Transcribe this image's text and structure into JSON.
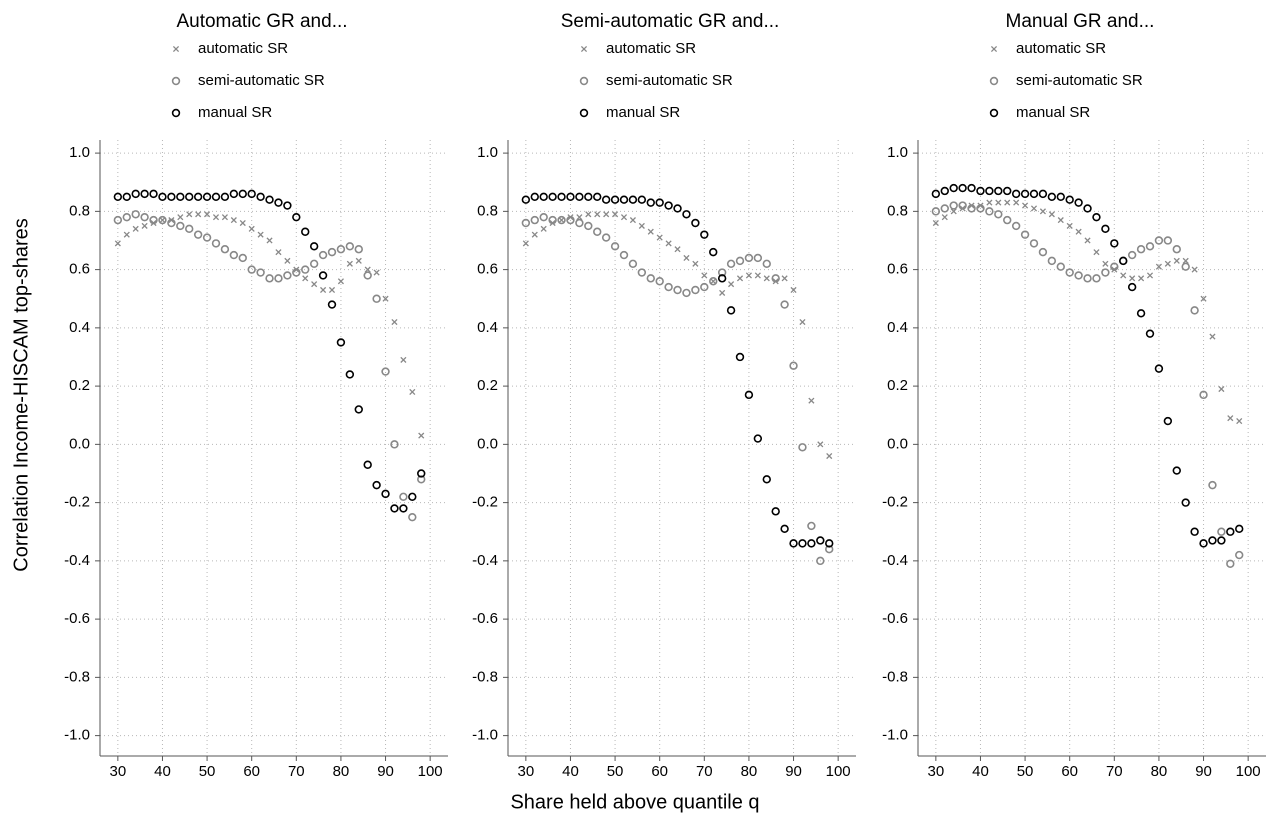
{
  "x_label": "Share held above quantile q",
  "y_label": "Correlation Income-HISCAM top-shares",
  "chart_data": [
    {
      "type": "scatter",
      "title": "Automatic GR and...",
      "x": [
        30,
        32,
        34,
        36,
        38,
        40,
        42,
        44,
        46,
        48,
        50,
        52,
        54,
        56,
        58,
        60,
        62,
        64,
        66,
        68,
        70,
        72,
        74,
        76,
        78,
        80,
        82,
        84,
        86,
        88,
        90,
        92,
        94,
        96,
        98
      ],
      "series": [
        {
          "name": "automatic SR",
          "color": "#888888",
          "marker": "x",
          "values": [
            0.69,
            0.72,
            0.74,
            0.75,
            0.76,
            0.77,
            0.77,
            0.78,
            0.79,
            0.79,
            0.79,
            0.78,
            0.78,
            0.77,
            0.76,
            0.74,
            0.72,
            0.7,
            0.66,
            0.63,
            0.6,
            0.57,
            0.55,
            0.53,
            0.53,
            0.56,
            0.62,
            0.63,
            0.6,
            0.59,
            0.5,
            0.42,
            0.29,
            0.18,
            0.03
          ]
        },
        {
          "name": "semi-automatic SR",
          "color": "#888888",
          "marker": "circle",
          "values": [
            0.77,
            0.78,
            0.79,
            0.78,
            0.77,
            0.77,
            0.76,
            0.75,
            0.74,
            0.72,
            0.71,
            0.69,
            0.67,
            0.65,
            0.64,
            0.6,
            0.59,
            0.57,
            0.57,
            0.58,
            0.59,
            0.6,
            0.62,
            0.65,
            0.66,
            0.67,
            0.68,
            0.67,
            0.58,
            0.5,
            0.25,
            0.0,
            -0.18,
            -0.25,
            -0.12
          ]
        },
        {
          "name": "manual SR",
          "color": "#000000",
          "marker": "circle",
          "values": [
            0.85,
            0.85,
            0.86,
            0.86,
            0.86,
            0.85,
            0.85,
            0.85,
            0.85,
            0.85,
            0.85,
            0.85,
            0.85,
            0.86,
            0.86,
            0.86,
            0.85,
            0.84,
            0.83,
            0.82,
            0.78,
            0.73,
            0.68,
            0.58,
            0.48,
            0.35,
            0.24,
            0.12,
            -0.07,
            -0.14,
            -0.17,
            -0.22,
            -0.22,
            -0.18,
            -0.1
          ]
        }
      ],
      "xlim": [
        26,
        104
      ],
      "ylim": [
        -1.07,
        1.045
      ],
      "xticks": [
        30,
        40,
        50,
        60,
        70,
        80,
        90,
        100
      ],
      "yticks": [
        {
          "value": -1,
          "label": "-1.0"
        },
        -0.8,
        -0.6,
        -0.4,
        -0.2,
        {
          "value": 0,
          "label": "0.0"
        },
        0.2,
        0.4,
        0.6,
        0.8,
        {
          "value": 1,
          "label": "1.0"
        }
      ],
      "grid": true
    },
    {
      "type": "scatter",
      "title": "Semi-automatic GR and...",
      "x": [
        30,
        32,
        34,
        36,
        38,
        40,
        42,
        44,
        46,
        48,
        50,
        52,
        54,
        56,
        58,
        60,
        62,
        64,
        66,
        68,
        70,
        72,
        74,
        76,
        78,
        80,
        82,
        84,
        86,
        88,
        90,
        92,
        94,
        96,
        98
      ],
      "series": [
        {
          "name": "automatic SR",
          "color": "#888888",
          "marker": "x",
          "values": [
            0.69,
            0.72,
            0.74,
            0.76,
            0.77,
            0.78,
            0.78,
            0.79,
            0.79,
            0.79,
            0.79,
            0.78,
            0.77,
            0.75,
            0.73,
            0.71,
            0.69,
            0.67,
            0.64,
            0.62,
            0.58,
            0.56,
            0.52,
            0.55,
            0.57,
            0.58,
            0.58,
            0.57,
            0.56,
            0.57,
            0.53,
            0.42,
            0.15,
            0.0,
            -0.04
          ]
        },
        {
          "name": "semi-automatic SR",
          "color": "#888888",
          "marker": "circle",
          "values": [
            0.76,
            0.77,
            0.78,
            0.77,
            0.77,
            0.77,
            0.76,
            0.75,
            0.73,
            0.71,
            0.68,
            0.65,
            0.62,
            0.59,
            0.57,
            0.56,
            0.54,
            0.53,
            0.52,
            0.53,
            0.54,
            0.56,
            0.59,
            0.62,
            0.63,
            0.64,
            0.64,
            0.62,
            0.57,
            0.48,
            0.27,
            -0.01,
            -0.28,
            -0.4,
            -0.36
          ]
        },
        {
          "name": "manual SR",
          "color": "#000000",
          "marker": "circle",
          "values": [
            0.84,
            0.85,
            0.85,
            0.85,
            0.85,
            0.85,
            0.85,
            0.85,
            0.85,
            0.84,
            0.84,
            0.84,
            0.84,
            0.84,
            0.83,
            0.83,
            0.82,
            0.81,
            0.79,
            0.76,
            0.72,
            0.66,
            0.57,
            0.46,
            0.3,
            0.17,
            0.02,
            -0.12,
            -0.23,
            -0.29,
            -0.34,
            -0.34,
            -0.34,
            -0.33,
            -0.34
          ]
        }
      ],
      "xlim": [
        26,
        104
      ],
      "ylim": [
        -1.07,
        1.045
      ],
      "xticks": [
        30,
        40,
        50,
        60,
        70,
        80,
        90,
        100
      ],
      "yticks": [
        {
          "value": -1,
          "label": "-1.0"
        },
        -0.8,
        -0.6,
        -0.4,
        -0.2,
        {
          "value": 0,
          "label": "0.0"
        },
        0.2,
        0.4,
        0.6,
        0.8,
        {
          "value": 1,
          "label": "1.0"
        }
      ],
      "grid": true
    },
    {
      "type": "scatter",
      "title": "Manual GR and...",
      "x": [
        30,
        32,
        34,
        36,
        38,
        40,
        42,
        44,
        46,
        48,
        50,
        52,
        54,
        56,
        58,
        60,
        62,
        64,
        66,
        68,
        70,
        72,
        74,
        76,
        78,
        80,
        82,
        84,
        86,
        88,
        90,
        92,
        94,
        96,
        98
      ],
      "series": [
        {
          "name": "automatic SR",
          "color": "#888888",
          "marker": "x",
          "values": [
            0.76,
            0.78,
            0.8,
            0.81,
            0.82,
            0.82,
            0.83,
            0.83,
            0.83,
            0.83,
            0.82,
            0.81,
            0.8,
            0.79,
            0.77,
            0.75,
            0.73,
            0.7,
            0.66,
            0.62,
            0.6,
            0.58,
            0.57,
            0.57,
            0.58,
            0.61,
            0.62,
            0.63,
            0.63,
            0.6,
            0.5,
            0.37,
            0.19,
            0.09,
            0.08
          ]
        },
        {
          "name": "semi-automatic SR",
          "color": "#888888",
          "marker": "circle",
          "values": [
            0.8,
            0.81,
            0.82,
            0.82,
            0.81,
            0.81,
            0.8,
            0.79,
            0.77,
            0.75,
            0.72,
            0.69,
            0.66,
            0.63,
            0.61,
            0.59,
            0.58,
            0.57,
            0.57,
            0.59,
            0.61,
            0.63,
            0.65,
            0.67,
            0.68,
            0.7,
            0.7,
            0.67,
            0.61,
            0.46,
            0.17,
            -0.14,
            -0.3,
            -0.41,
            -0.38
          ]
        },
        {
          "name": "manual SR",
          "color": "#000000",
          "marker": "circle",
          "values": [
            0.86,
            0.87,
            0.88,
            0.88,
            0.88,
            0.87,
            0.87,
            0.87,
            0.87,
            0.86,
            0.86,
            0.86,
            0.86,
            0.85,
            0.85,
            0.84,
            0.83,
            0.81,
            0.78,
            0.74,
            0.69,
            0.63,
            0.54,
            0.45,
            0.38,
            0.26,
            0.08,
            -0.09,
            -0.2,
            -0.3,
            -0.34,
            -0.33,
            -0.33,
            -0.3,
            -0.29
          ]
        }
      ],
      "xlim": [
        26,
        104
      ],
      "ylim": [
        -1.07,
        1.045
      ],
      "xticks": [
        30,
        40,
        50,
        60,
        70,
        80,
        90,
        100
      ],
      "yticks": [
        {
          "value": -1,
          "label": "-1.0"
        },
        -0.8,
        -0.6,
        -0.4,
        -0.2,
        {
          "value": 0,
          "label": "0.0"
        },
        0.2,
        0.4,
        0.6,
        0.8,
        {
          "value": 1,
          "label": "1.0"
        }
      ],
      "grid": true
    }
  ]
}
